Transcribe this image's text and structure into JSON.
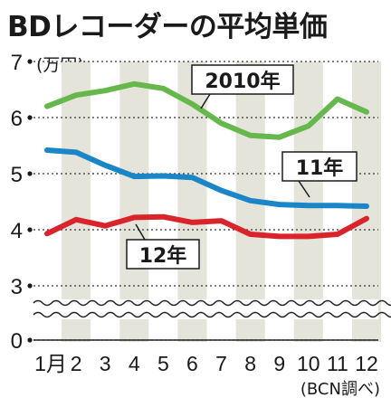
{
  "title": "BDレコーダーの平均単価",
  "unit_label": "(万円)",
  "source": "(BCN調べ)",
  "chart_data": {
    "type": "line",
    "title": "BDレコーダーの平均単価",
    "ylabel": "(万円)",
    "xlabel": "",
    "categories": [
      "1月",
      "2",
      "3",
      "4",
      "5",
      "6",
      "7",
      "8",
      "9",
      "10",
      "11",
      "12"
    ],
    "y_ticks": [
      "0",
      "3",
      "4",
      "5",
      "6",
      "7"
    ],
    "axis_break": "between 0 and 3",
    "ylim": [
      3,
      7
    ],
    "grid": true,
    "series": [
      {
        "name": "2010年",
        "color": "#66b84c",
        "values": [
          6.2,
          6.4,
          6.48,
          6.6,
          6.52,
          6.24,
          5.9,
          5.68,
          5.65,
          5.85,
          6.33,
          6.1
        ]
      },
      {
        "name": "11年",
        "color": "#1a86c8",
        "values": [
          5.42,
          5.38,
          5.15,
          4.95,
          4.96,
          4.93,
          4.7,
          4.52,
          4.45,
          4.43,
          4.43,
          4.42
        ]
      },
      {
        "name": "12年",
        "color": "#d9242b",
        "values": [
          3.93,
          4.18,
          4.07,
          4.22,
          4.23,
          4.13,
          4.16,
          3.92,
          3.88,
          3.88,
          3.92,
          4.2
        ]
      }
    ]
  }
}
